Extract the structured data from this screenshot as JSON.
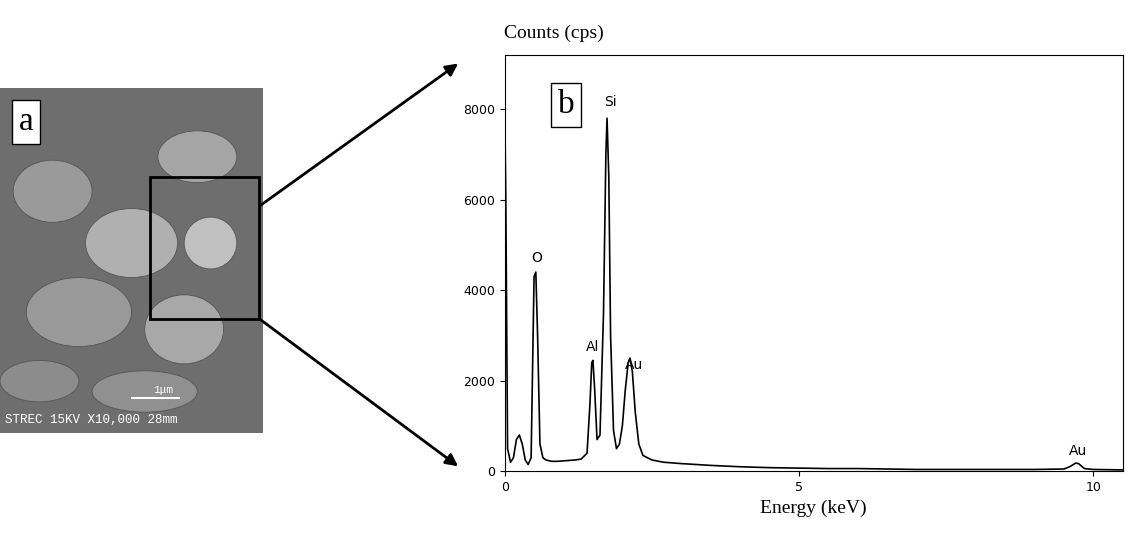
{
  "chart_data": {
    "type": "line",
    "panel_label": "b",
    "y_label": "Counts (cps)",
    "x_label": "Energy (keV)",
    "x": [
      0.0,
      0.02,
      0.05,
      0.1,
      0.15,
      0.2,
      0.25,
      0.3,
      0.35,
      0.4,
      0.45,
      0.5,
      0.53,
      0.56,
      0.6,
      0.65,
      0.7,
      0.8,
      0.9,
      1.0,
      1.1,
      1.2,
      1.3,
      1.4,
      1.45,
      1.48,
      1.5,
      1.53,
      1.57,
      1.62,
      1.68,
      1.72,
      1.74,
      1.77,
      1.8,
      1.85,
      1.9,
      1.95,
      2.0,
      2.05,
      2.1,
      2.13,
      2.17,
      2.22,
      2.28,
      2.35,
      2.5,
      2.7,
      3.0,
      3.5,
      4.0,
      4.5,
      5.0,
      5.5,
      6.0,
      6.5,
      7.0,
      7.5,
      8.0,
      8.5,
      9.0,
      9.5,
      9.6,
      9.7,
      9.75,
      9.85,
      10.0,
      10.5
    ],
    "values": [
      8200,
      6000,
      500,
      200,
      300,
      700,
      800,
      600,
      250,
      150,
      300,
      4300,
      4400,
      3000,
      600,
      300,
      250,
      220,
      220,
      230,
      240,
      250,
      270,
      400,
      1500,
      2400,
      2450,
      1800,
      700,
      800,
      3500,
      7000,
      7800,
      6500,
      3000,
      900,
      500,
      600,
      1000,
      1800,
      2400,
      2500,
      2200,
      1300,
      600,
      350,
      250,
      200,
      170,
      130,
      100,
      80,
      70,
      60,
      60,
      50,
      40,
      40,
      40,
      40,
      40,
      50,
      100,
      180,
      170,
      60,
      40,
      30
    ],
    "color": "#000000",
    "xlim": [
      0,
      10.5
    ],
    "ylim": [
      0,
      9200
    ],
    "xticks": [
      0,
      5,
      10
    ],
    "yticks": [
      0,
      2000,
      4000,
      6000,
      8000
    ],
    "grid": false,
    "annotations": [
      {
        "text": "O",
        "x": 0.55,
        "y": 4550
      },
      {
        "text": "Al",
        "x": 1.5,
        "y": 2600
      },
      {
        "text": "Si",
        "x": 1.8,
        "y": 8000
      },
      {
        "text": "Au",
        "x": 2.2,
        "y": 2200
      },
      {
        "text": "Au",
        "x": 9.75,
        "y": 300
      }
    ]
  },
  "image": {
    "panel_label": "a",
    "caption": "STREC 15KV X10,000 28mm",
    "scale_bar": "1μm"
  }
}
